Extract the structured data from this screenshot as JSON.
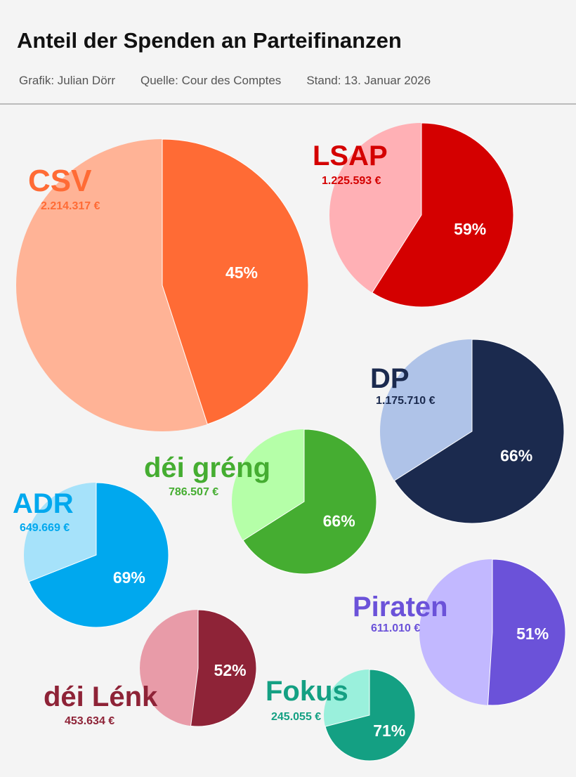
{
  "header": {
    "title": "Anteil der Spenden an Parteifinanzen",
    "credit": "Grafik: Julian Dörr",
    "source": "Quelle: Cour des Comptes",
    "date": "Stand: 13. Januar 2026"
  },
  "chart_data": {
    "type": "pie",
    "title": "Anteil der Spenden an Parteifinanzen",
    "pies": [
      {
        "party": "CSV",
        "amount": "2.214.317 €",
        "share_pct": 45,
        "label": "45%",
        "color": "#FF6B35",
        "color_rest": "#FFB396"
      },
      {
        "party": "LSAP",
        "amount": "1.225.593 €",
        "share_pct": 59,
        "label": "59%",
        "color": "#D40000",
        "color_rest": "#FFB0B5"
      },
      {
        "party": "DP",
        "amount": "1.175.710 €",
        "share_pct": 66,
        "label": "66%",
        "color": "#1B2A4E",
        "color_rest": "#AFC3E8"
      },
      {
        "party": "déi gréng",
        "amount": "786.507 €",
        "share_pct": 66,
        "label": "66%",
        "color": "#45AD31",
        "color_rest": "#B5FFA8"
      },
      {
        "party": "ADR",
        "amount": "649.669 €",
        "share_pct": 69,
        "label": "69%",
        "color": "#00A8EE",
        "color_rest": "#A6E2FA"
      },
      {
        "party": "Piraten",
        "amount": "611.010 €",
        "share_pct": 51,
        "label": "51%",
        "color": "#6B52D9",
        "color_rest": "#C2B8FF"
      },
      {
        "party": "déi Lénk",
        "amount": "453.634 €",
        "share_pct": 52,
        "label": "52%",
        "color": "#8E2337",
        "color_rest": "#E89BA8"
      },
      {
        "party": "Fokus",
        "amount": "245.055 €",
        "share_pct": 71,
        "label": "71%",
        "color": "#14A083",
        "color_rest": "#9AF0DC"
      }
    ]
  }
}
